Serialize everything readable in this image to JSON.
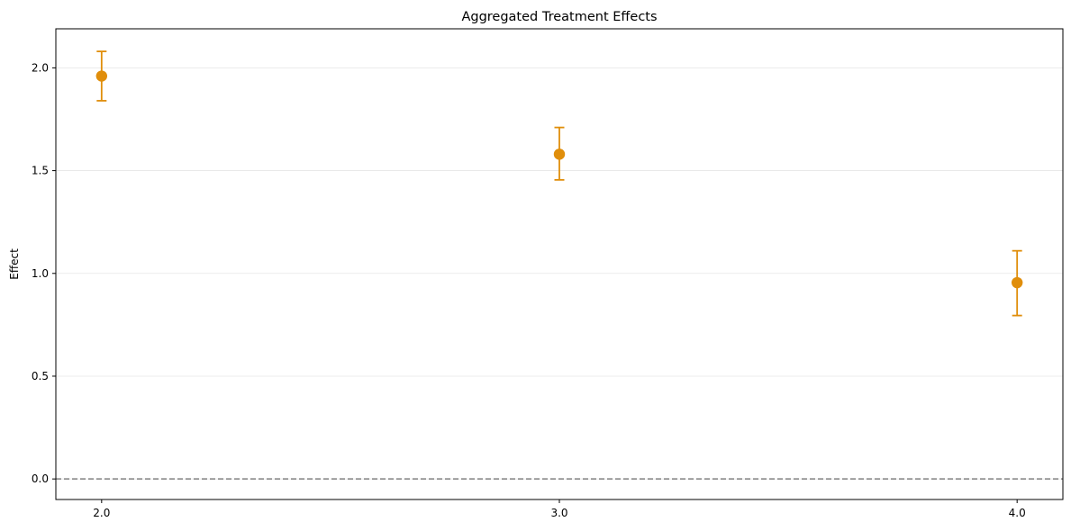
{
  "chart_data": {
    "type": "scatter",
    "title": "Aggregated Treatment Effects",
    "xlabel": "",
    "ylabel": "Effect",
    "x_ticks": [
      "2.0",
      "3.0",
      "4.0"
    ],
    "y_ticks": [
      "0.0",
      "0.5",
      "1.0",
      "1.5",
      "2.0"
    ],
    "xlim": [
      1.9,
      4.1
    ],
    "ylim": [
      -0.1,
      2.19
    ],
    "grid": "horizontal",
    "reference_line": {
      "y": 0.0,
      "style": "dashed",
      "color": "#808080"
    },
    "series": [
      {
        "x": [
          2.0,
          3.0,
          4.0
        ],
        "y": [
          1.96,
          1.58,
          0.955
        ],
        "ci_lower": [
          1.84,
          1.455,
          0.795
        ],
        "ci_upper": [
          2.08,
          1.71,
          1.11
        ],
        "color": "#e08e0b"
      }
    ]
  }
}
